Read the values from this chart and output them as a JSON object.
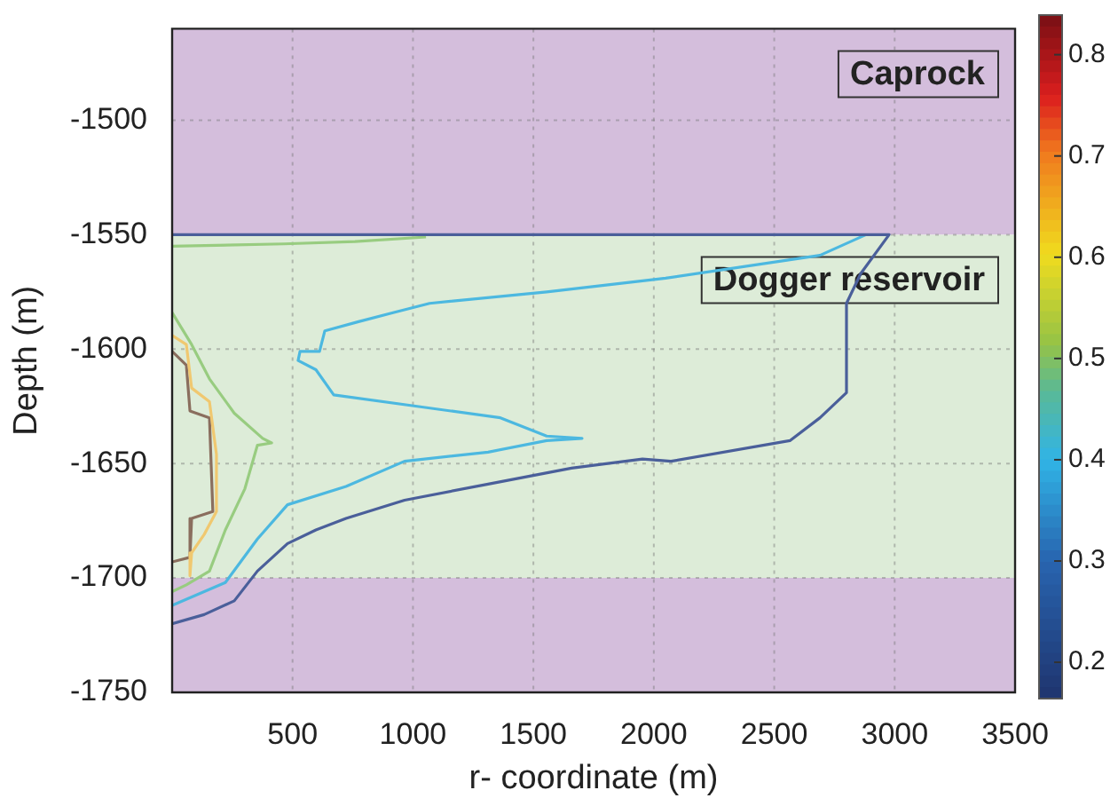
{
  "chart_data": {
    "type": "line",
    "xlabel": "r- coordinate (m)",
    "ylabel": "Depth (m)",
    "xlim": [
      0,
      3500
    ],
    "ylim": [
      -1750,
      -1460
    ],
    "xticks": [
      500,
      1000,
      1500,
      2000,
      2500,
      3000,
      3500
    ],
    "yticks": [
      -1750,
      -1700,
      -1650,
      -1600,
      -1550,
      -1500
    ],
    "grid": true,
    "clim": [
      0.165,
      0.84
    ],
    "cticks": [
      0.2,
      0.3,
      0.4,
      0.5,
      0.6,
      0.7,
      0.8
    ],
    "bands": [
      {
        "axis": "y",
        "from": -1550,
        "to": -1460,
        "label": "Caprock",
        "color": "#d4bedc"
      },
      {
        "axis": "y",
        "from": -1700,
        "to": -1550,
        "label": "Dogger reservoir",
        "color": "#ddecd8"
      },
      {
        "axis": "y",
        "from": -1750,
        "to": -1700,
        "label": null,
        "color": "#d4bedc"
      }
    ],
    "series": [
      {
        "color": "#4a5f9a",
        "x": [
          0,
          133,
          258,
          354,
          479,
          597,
          722,
          965,
          1312,
          1658,
          1953,
          2071,
          2565,
          2690,
          2800,
          2800,
          2859,
          2977,
          2918,
          0
        ],
        "values": [
          -1720,
          -1716,
          -1710,
          -1697,
          -1685,
          -1679,
          -1674,
          -1666,
          -1659,
          -1652,
          -1648,
          -1649,
          -1640,
          -1630,
          -1619,
          -1580,
          -1567,
          -1550,
          -1550,
          -1550
        ]
      },
      {
        "color": "#4cb8e0",
        "x": [
          0,
          221,
          354,
          479,
          722,
          965,
          1312,
          1555,
          1702,
          1555,
          1363,
          1017,
          671,
          597,
          523,
          531,
          612,
          634,
          774,
          921,
          1069,
          1555,
          2049,
          2690,
          2881
        ],
        "values": [
          -1712,
          -1702,
          -1683,
          -1668,
          -1660,
          -1649,
          -1645,
          -1640,
          -1639,
          -1638,
          -1630,
          -1625,
          -1620,
          -1609,
          -1605,
          -1601,
          -1601,
          -1592,
          -1588,
          -1584,
          -1580,
          -1575,
          -1569,
          -1559,
          -1550
        ]
      },
      {
        "color": "#98cc80",
        "x": [
          0,
          81,
          155,
          258,
          376,
          413,
          354,
          302,
          221,
          155,
          59,
          0
        ],
        "values": [
          -1584,
          -1598,
          -1613,
          -1628,
          -1639,
          -1641,
          -1642,
          -1661,
          -1679,
          -1697,
          -1703,
          -1706
        ]
      },
      {
        "color": "#98cc80",
        "x": [
          0,
          464,
          759,
          1054
        ],
        "values": [
          -1555,
          -1554,
          -1553,
          -1551
        ]
      },
      {
        "color": "#f0c870",
        "x": [
          0,
          59,
          81,
          155,
          184,
          184,
          133,
          81,
          74
        ],
        "values": [
          -1594,
          -1598,
          -1617,
          -1623,
          -1646,
          -1671,
          -1681,
          -1689,
          -1699
        ]
      },
      {
        "color": "#8a6e5e",
        "x": [
          0,
          59,
          74,
          155,
          169,
          81,
          74,
          0
        ],
        "values": [
          -1601,
          -1607,
          -1627,
          -1630,
          -1671,
          -1674,
          -1691,
          -1693
        ]
      }
    ]
  }
}
